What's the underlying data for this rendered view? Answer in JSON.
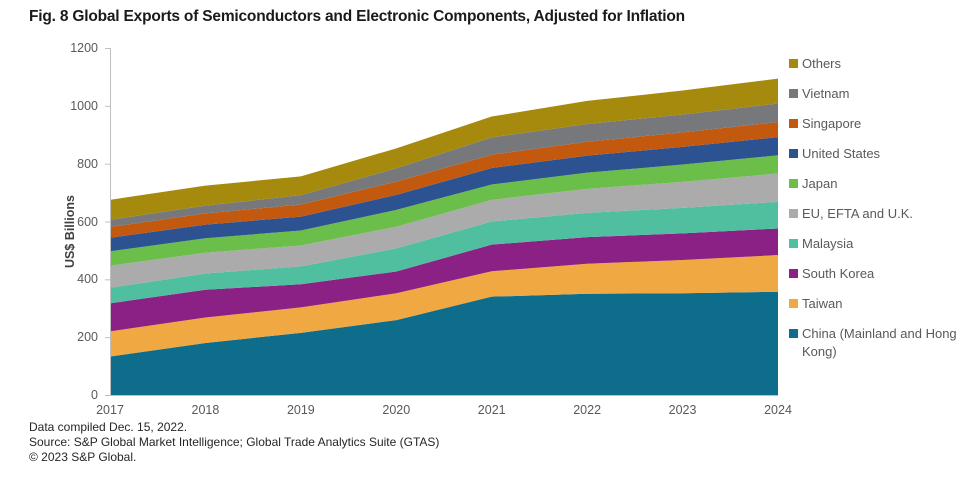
{
  "figure": {
    "title": "Fig. 8 Global Exports of Semiconductors and Electronic Components, Adjusted for Inflation"
  },
  "footnotes": {
    "compiled": "Data compiled Dec. 15, 2022.",
    "source": "Source: S&P Global Market Intelligence; Global Trade Analytics Suite (GTAS)",
    "copyright": "© 2023 S&P Global."
  },
  "styles": {
    "axis_line_color": "#bfbfbf",
    "axis_text_color": "#595959",
    "legend_text_color": "#58595b"
  },
  "chart_data": {
    "type": "area",
    "stacked": true,
    "title": "Fig. 8 Global Exports of Semiconductors and Electronic Components, Adjusted for Inflation",
    "xlabel": "",
    "ylabel": "US$ Billions",
    "x": [
      2017,
      2018,
      2019,
      2020,
      2021,
      2022,
      2023,
      2024
    ],
    "ylim": [
      0,
      1200
    ],
    "yticks": [
      0,
      200,
      400,
      600,
      800,
      1000,
      1200
    ],
    "grid": false,
    "legend_position": "right",
    "legend_order_top_to_bottom": [
      "Others",
      "Vietnam",
      "Singapore",
      "United States",
      "Japan",
      "EU, EFTA and U.K.",
      "Malaysia",
      "South Korea",
      "Taiwan",
      "China (Mainland and Hong Kong)"
    ],
    "series": [
      {
        "name": "China (Mainland and Hong Kong)",
        "color": "#0E6D8A",
        "values": [
          133,
          180,
          215,
          259,
          340,
          350,
          352,
          357
        ]
      },
      {
        "name": "Taiwan",
        "color": "#F0A843",
        "values": [
          87,
          88,
          88,
          93,
          88,
          104,
          115,
          127
        ]
      },
      {
        "name": "South Korea",
        "color": "#8B2085",
        "values": [
          97,
          96,
          80,
          75,
          92,
          92,
          92,
          92
        ]
      },
      {
        "name": "Malaysia",
        "color": "#4FBFA0",
        "values": [
          54,
          56,
          62,
          80,
          80,
          84,
          88,
          92
        ]
      },
      {
        "name": "EU, EFTA and U.K.",
        "color": "#ABABAB",
        "values": [
          76,
          72,
          72,
          75,
          75,
          83,
          90,
          98
        ]
      },
      {
        "name": "Japan",
        "color": "#6CBE4B",
        "values": [
          50,
          50,
          52,
          58,
          53,
          56,
          60,
          63
        ]
      },
      {
        "name": "United States",
        "color": "#2C5291",
        "values": [
          47,
          47,
          48,
          52,
          57,
          59,
          61,
          63
        ]
      },
      {
        "name": "Singapore",
        "color": "#C2590F",
        "values": [
          37,
          39,
          42,
          46,
          46,
          48,
          50,
          52
        ]
      },
      {
        "name": "Vietnam",
        "color": "#77787B",
        "values": [
          25,
          27,
          32,
          46,
          60,
          61,
          62,
          64
        ]
      },
      {
        "name": "Others",
        "color": "#A68A0D",
        "values": [
          69,
          69,
          65,
          69,
          72,
          80,
          83,
          86
        ]
      }
    ],
    "totals_by_year": [
      675,
      724,
      756,
      853,
      963,
      1017,
      1053,
      1094
    ]
  }
}
